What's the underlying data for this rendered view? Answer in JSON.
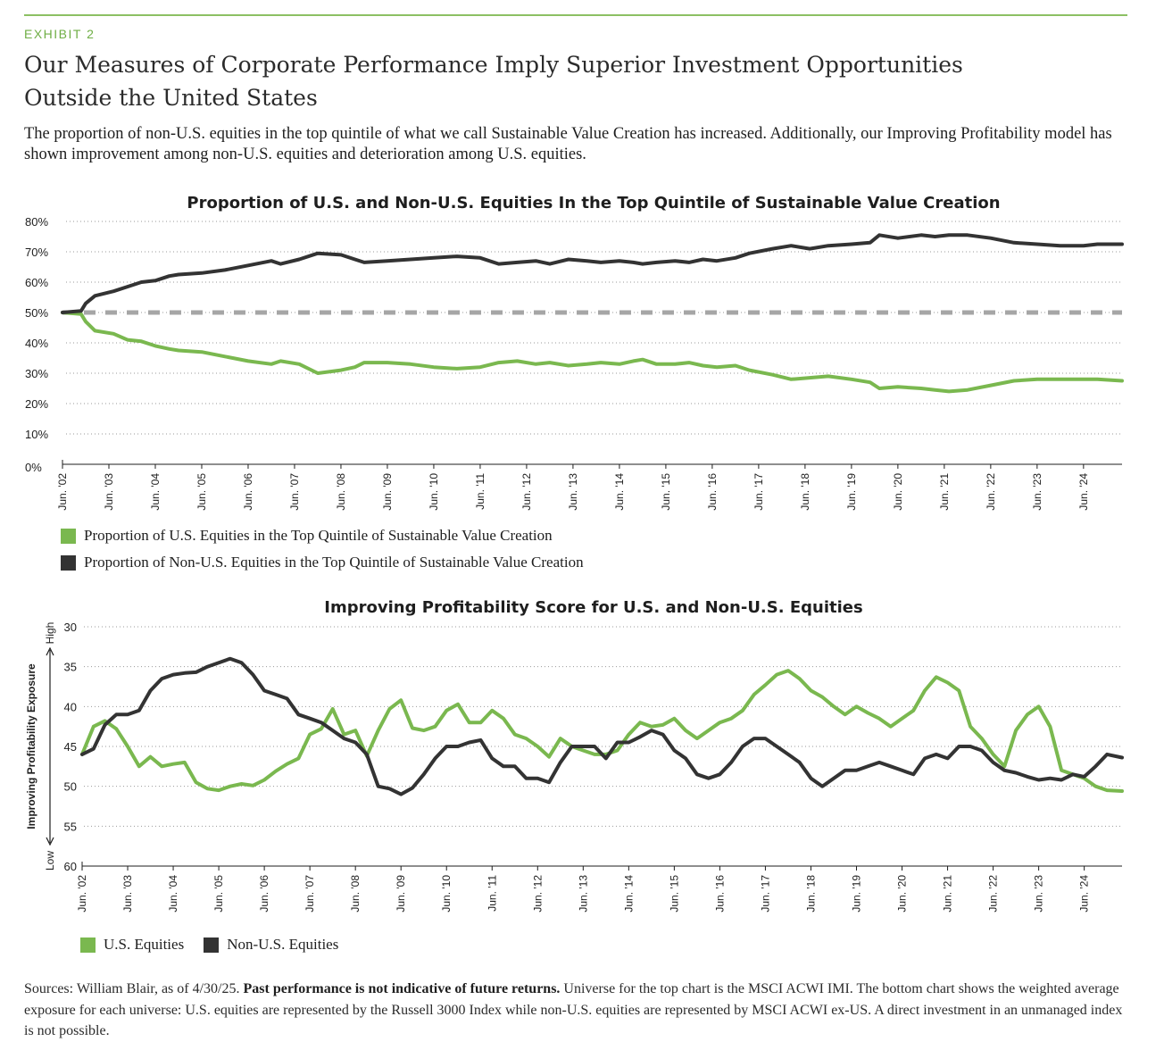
{
  "header": {
    "exhibit": "EXHIBIT 2",
    "title": "Our Measures of Corporate Performance Imply Superior Investment Opportunities Outside the United States",
    "lede": "The proportion of non-U.S. equities in the top quintile of what we call Sustainable Value Creation has increased. Additionally, our Improving Profitability model has shown improvement among non-U.S. equities and deterioration among U.S. equities."
  },
  "colors": {
    "us": "#7ab84f",
    "nonus": "#333333",
    "reference": "#a6a6a6",
    "accent": "#8cc063"
  },
  "chart_data": [
    {
      "type": "line",
      "title": "Proportion of U.S. and Non-U.S. Equities In the Top Quintile of Sustainable Value Creation",
      "xlabel": "",
      "ylabel": "",
      "x_ticks": [
        "Jun. '02",
        "Jun. '03",
        "Jun. '04",
        "Jun. '05",
        "Jun. '06",
        "Jun. '07",
        "Jun. '08",
        "Jun. '09",
        "Jun. '10",
        "Jun. '11",
        "Jun. '12",
        "Jun. '13",
        "Jun. '14",
        "Jun. '15",
        "Jun. '16",
        "Jun. '17",
        "Jun. '18",
        "Jun. '19",
        "Jun. '20",
        "Jun. '21",
        "Jun. '22",
        "Jun. '23",
        "Jun. '24"
      ],
      "y_ticks": [
        "0%",
        "10%",
        "20%",
        "30%",
        "40%",
        "50%",
        "60%",
        "70%",
        "80%"
      ],
      "ylim": [
        0,
        80
      ],
      "x_range": [
        2002.5,
        2025.33
      ],
      "grid": true,
      "reference_line": 50,
      "legend": "bottom-left",
      "series": [
        {
          "name": "Proportion of U.S. Equities in the Top Quintile of Sustainable Value Creation",
          "color": "#7ab84f",
          "x": [
            2002.5,
            2002.9,
            2003.0,
            2003.2,
            2003.6,
            2003.9,
            2004.2,
            2004.5,
            2004.8,
            2005.0,
            2005.5,
            2006.0,
            2006.5,
            2007.0,
            2007.2,
            2007.6,
            2008.0,
            2008.5,
            2008.8,
            2009.0,
            2009.5,
            2010.0,
            2010.5,
            2011.0,
            2011.5,
            2011.9,
            2012.3,
            2012.7,
            2013.0,
            2013.4,
            2013.8,
            2014.1,
            2014.5,
            2014.8,
            2015.0,
            2015.3,
            2015.7,
            2016.0,
            2016.3,
            2016.6,
            2017.0,
            2017.3,
            2017.8,
            2018.2,
            2018.6,
            2019.0,
            2019.5,
            2019.9,
            2020.1,
            2020.5,
            2021.0,
            2021.3,
            2021.6,
            2022.0,
            2022.5,
            2023.0,
            2023.5,
            2024.0,
            2024.5,
            2024.8,
            2025.33
          ],
          "y": [
            50,
            49.5,
            47,
            44,
            43,
            41,
            40.5,
            39,
            38,
            37.5,
            37,
            35.5,
            34,
            33,
            34,
            33,
            30,
            31,
            32,
            33.5,
            33.5,
            33,
            32,
            31.5,
            32,
            33.5,
            34,
            33,
            33.5,
            32.5,
            33,
            33.5,
            33,
            34,
            34.5,
            33,
            33,
            33.5,
            32.5,
            32,
            32.5,
            31,
            29.5,
            28,
            28.5,
            29,
            28,
            27,
            25,
            25.5,
            25,
            24.5,
            24,
            24.5,
            26,
            27.5,
            28,
            28,
            28,
            28,
            27.5
          ]
        },
        {
          "name": "Proportion of Non-U.S. Equities in the Top Quintile of Sustainable Value Creation",
          "color": "#333333",
          "x": [
            2002.5,
            2002.9,
            2003.0,
            2003.2,
            2003.6,
            2003.9,
            2004.2,
            2004.5,
            2004.8,
            2005.0,
            2005.5,
            2006.0,
            2006.5,
            2007.0,
            2007.2,
            2007.6,
            2008.0,
            2008.5,
            2008.8,
            2009.0,
            2009.5,
            2010.0,
            2010.5,
            2011.0,
            2011.5,
            2011.9,
            2012.3,
            2012.7,
            2013.0,
            2013.4,
            2013.8,
            2014.1,
            2014.5,
            2014.8,
            2015.0,
            2015.3,
            2015.7,
            2016.0,
            2016.3,
            2016.6,
            2017.0,
            2017.3,
            2017.8,
            2018.2,
            2018.6,
            2019.0,
            2019.5,
            2019.9,
            2020.1,
            2020.5,
            2021.0,
            2021.3,
            2021.6,
            2022.0,
            2022.5,
            2023.0,
            2023.5,
            2024.0,
            2024.5,
            2024.8,
            2025.33
          ],
          "y": [
            50,
            50.5,
            53,
            55.5,
            57,
            58.5,
            60,
            60.5,
            62,
            62.5,
            63,
            64,
            65.5,
            67,
            66,
            67.5,
            69.5,
            69,
            67.5,
            66.5,
            67,
            67.5,
            68,
            68.5,
            68,
            66,
            66.5,
            67,
            66,
            67.5,
            67,
            66.5,
            67,
            66.5,
            66,
            66.5,
            67,
            66.5,
            67.5,
            67,
            68,
            69.5,
            71,
            72,
            71,
            72,
            72.5,
            73,
            75.5,
            74.5,
            75.5,
            75,
            75.5,
            75.5,
            74.5,
            73,
            72.5,
            72,
            72,
            72.5,
            72.5
          ]
        }
      ]
    },
    {
      "type": "line",
      "title": "Improving Profitability Score for U.S. and Non-U.S. Equities",
      "xlabel": "",
      "ylabel": "Improving Profitability Exposure",
      "y_high_label": "High",
      "y_low_label": "Low",
      "x_ticks": [
        "Jun. '02",
        "Jun. '03",
        "Jun. '04",
        "Jun. '05",
        "Jun. '06",
        "Jun. '07",
        "Jun. '08",
        "Jun. '09",
        "Jun. '10",
        "Jun. '11",
        "Jun. '12",
        "Jun. '13",
        "Jun. '14",
        "Jun. '15",
        "Jun. '16",
        "Jun. '17",
        "Jun. '18",
        "Jun. '19",
        "Jun. '20",
        "Jun. '21",
        "Jun. '22",
        "Jun. '23",
        "Jun. '24"
      ],
      "y_ticks": [
        "30",
        "35",
        "40",
        "45",
        "50",
        "55",
        "60"
      ],
      "ylim": [
        30,
        60
      ],
      "y_reversed": true,
      "x_range": [
        2002.5,
        2025.33
      ],
      "grid": true,
      "legend": "bottom-left",
      "series": [
        {
          "name": "U.S. Equities",
          "color": "#7ab84f",
          "x": [
            2002.5,
            2002.75,
            2003.0,
            2003.25,
            2003.5,
            2003.75,
            2004.0,
            2004.25,
            2004.5,
            2004.75,
            2005.0,
            2005.25,
            2005.5,
            2005.75,
            2006.0,
            2006.25,
            2006.5,
            2006.75,
            2007.0,
            2007.25,
            2007.5,
            2007.75,
            2008.0,
            2008.25,
            2008.5,
            2008.75,
            2009.0,
            2009.25,
            2009.5,
            2009.75,
            2010.0,
            2010.25,
            2010.5,
            2010.75,
            2011.0,
            2011.25,
            2011.5,
            2011.75,
            2012.0,
            2012.25,
            2012.5,
            2012.75,
            2013.0,
            2013.25,
            2013.5,
            2013.75,
            2014.0,
            2014.25,
            2014.5,
            2014.75,
            2015.0,
            2015.25,
            2015.5,
            2015.75,
            2016.0,
            2016.25,
            2016.5,
            2016.75,
            2017.0,
            2017.25,
            2017.5,
            2017.75,
            2018.0,
            2018.25,
            2018.5,
            2018.75,
            2019.0,
            2019.25,
            2019.5,
            2019.75,
            2020.0,
            2020.25,
            2020.5,
            2020.75,
            2021.0,
            2021.25,
            2021.5,
            2021.75,
            2022.0,
            2022.25,
            2022.5,
            2022.75,
            2023.0,
            2023.25,
            2023.5,
            2023.75,
            2024.0,
            2024.25,
            2024.5,
            2024.75,
            2025.0,
            2025.33
          ],
          "y": [
            46,
            42.5,
            41.8,
            42.8,
            45,
            47.5,
            46.3,
            47.5,
            47.2,
            47,
            49.5,
            50.3,
            50.5,
            50.0,
            49.7,
            49.9,
            49.2,
            48.1,
            47.2,
            46.5,
            43.5,
            42.8,
            40.3,
            43.5,
            43.0,
            46.2,
            43.0,
            40.3,
            39.2,
            42.7,
            43,
            42.5,
            40.5,
            39.7,
            42.0,
            42.0,
            40.5,
            41.5,
            43.5,
            44.0,
            45.0,
            46.3,
            44.0,
            45.0,
            45.5,
            46.0,
            46.0,
            45.5,
            43.5,
            42.0,
            42.5,
            42.3,
            41.5,
            43.0,
            44.0,
            43.0,
            42.0,
            41.5,
            40.5,
            38.5,
            37.3,
            36.0,
            35.5,
            36.5,
            38.0,
            38.8,
            40.0,
            41.0,
            40.0,
            40.8,
            41.5,
            42.5,
            41.5,
            40.5,
            38.0,
            36.3,
            37.0,
            38.0,
            42.5,
            44.0,
            46.0,
            47.5,
            43.0,
            41.0,
            40.0,
            42.5,
            48.0,
            48.5,
            49.0,
            50.0,
            50.5,
            50.6
          ]
        },
        {
          "name": "Non-U.S. Equities",
          "color": "#333333",
          "x": [
            2002.5,
            2002.75,
            2003.0,
            2003.25,
            2003.5,
            2003.75,
            2004.0,
            2004.25,
            2004.5,
            2004.75,
            2005.0,
            2005.25,
            2005.5,
            2005.75,
            2006.0,
            2006.25,
            2006.5,
            2006.75,
            2007.0,
            2007.25,
            2007.5,
            2007.75,
            2008.0,
            2008.25,
            2008.5,
            2008.75,
            2009.0,
            2009.25,
            2009.5,
            2009.75,
            2010.0,
            2010.25,
            2010.5,
            2010.75,
            2011.0,
            2011.25,
            2011.5,
            2011.75,
            2012.0,
            2012.25,
            2012.5,
            2012.75,
            2013.0,
            2013.25,
            2013.5,
            2013.75,
            2014.0,
            2014.25,
            2014.5,
            2014.75,
            2015.0,
            2015.25,
            2015.5,
            2015.75,
            2016.0,
            2016.25,
            2016.5,
            2016.75,
            2017.0,
            2017.25,
            2017.5,
            2017.75,
            2018.0,
            2018.25,
            2018.5,
            2018.75,
            2019.0,
            2019.25,
            2019.5,
            2019.75,
            2020.0,
            2020.25,
            2020.5,
            2020.75,
            2021.0,
            2021.25,
            2021.5,
            2021.75,
            2022.0,
            2022.25,
            2022.5,
            2022.75,
            2023.0,
            2023.25,
            2023.5,
            2023.75,
            2024.0,
            2024.25,
            2024.5,
            2024.75,
            2025.0,
            2025.33
          ],
          "y": [
            46,
            45.3,
            42.3,
            41,
            41.0,
            40.5,
            38,
            36.5,
            36,
            35.8,
            35.7,
            35,
            34.5,
            34,
            34.5,
            36,
            38.0,
            38.5,
            39.0,
            41.0,
            41.5,
            42,
            43.0,
            44,
            44.5,
            46.0,
            50.0,
            50.3,
            51.0,
            50.2,
            48.5,
            46.5,
            45.0,
            45.0,
            44.5,
            44.2,
            46.5,
            47.5,
            47.5,
            49.0,
            49.0,
            49.5,
            47.0,
            45.0,
            45.0,
            45.0,
            46.5,
            44.5,
            44.5,
            43.8,
            43.0,
            43.5,
            45.5,
            46.5,
            48.5,
            49.0,
            48.5,
            47.0,
            45.0,
            44.0,
            44.0,
            45.0,
            46.0,
            47.0,
            49.0,
            50.0,
            49.0,
            48.0,
            48.0,
            47.5,
            47.0,
            47.5,
            48.0,
            48.5,
            46.5,
            46.0,
            46.5,
            45.0,
            45.0,
            45.5,
            47.0,
            48.0,
            48.3,
            48.8,
            49.2,
            49.0,
            49.2,
            48.5,
            48.8,
            47.5,
            46.0,
            46.4
          ]
        }
      ]
    }
  ],
  "legend1": {
    "us": "Proportion of U.S. Equities in the Top Quintile of Sustainable Value Creation",
    "nonus": "Proportion of Non-U.S. Equities in the Top Quintile of Sustainable Value Creation"
  },
  "legend2": {
    "us": "U.S. Equities",
    "nonus": "Non-U.S. Equities"
  },
  "footer": {
    "sources_prefix": "Sources: William Blair, as of 4/30/25. ",
    "disclaimer_bold": "Past performance is not indicative of future returns.",
    "sources_suffix": " Universe for the top chart is the MSCI ACWI IMI. The bottom chart shows the weighted average exposure for each universe: U.S. equities are represented by the Russell 3000 Index while non-U.S. equities are represented by MSCI ACWI ex-US. A direct investment in an unmanaged index is not possible."
  }
}
